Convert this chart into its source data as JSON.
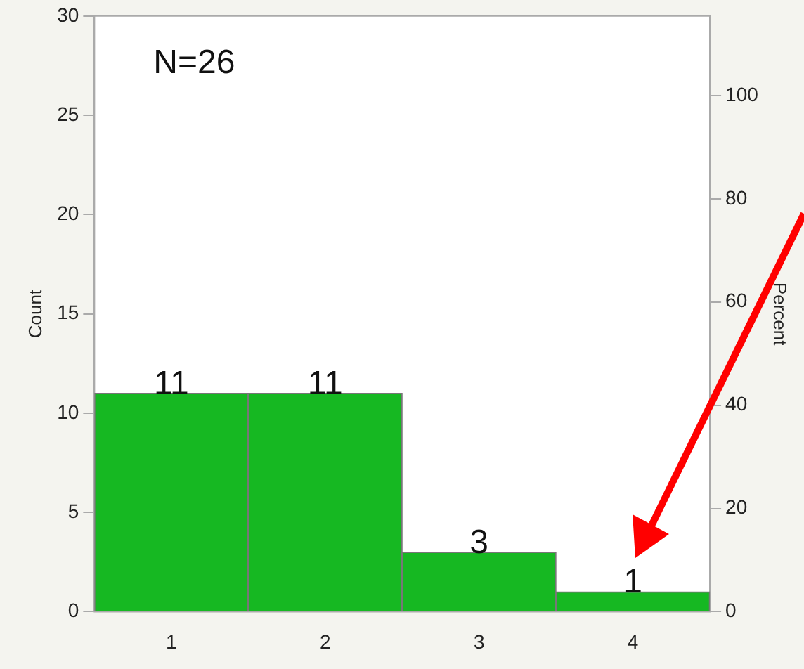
{
  "chart_data": {
    "type": "bar",
    "categories": [
      "1",
      "2",
      "3",
      "4"
    ],
    "values": [
      11,
      11,
      3,
      1
    ],
    "color": "#16b822",
    "ylabel": "Count",
    "ylim": [
      0,
      30
    ],
    "yticks": [
      0,
      5,
      10,
      15,
      20,
      25,
      30
    ],
    "y2label": "Percent",
    "y2lim": [
      0,
      115.4
    ],
    "y2ticks": [
      0,
      20,
      40,
      60,
      80,
      100
    ],
    "annotations": [
      "N=26"
    ],
    "data_labels": true,
    "grid": false,
    "legend": false
  }
}
